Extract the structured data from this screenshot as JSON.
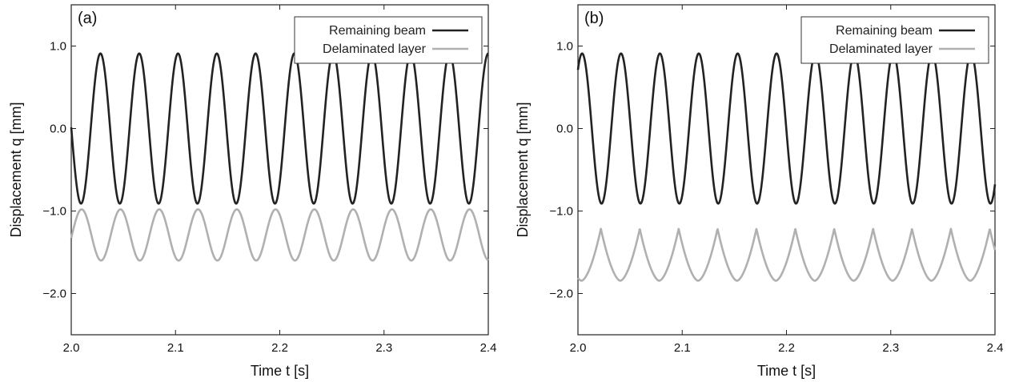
{
  "chart_data": [
    {
      "type": "line",
      "panel_label": "(a)",
      "xlabel": "Time t [s]",
      "ylabel": "Displacement q [mm]",
      "xlim": [
        2.0,
        2.4
      ],
      "ylim": [
        -2.5,
        1.5
      ],
      "xticks": [
        2.0,
        2.1,
        2.2,
        2.3,
        2.4
      ],
      "xtick_labels": [
        "2.0",
        "2.1",
        "2.2",
        "2.3",
        "2.4"
      ],
      "yticks": [
        1.0,
        0.0,
        -1.0,
        -2.0
      ],
      "ytick_labels": [
        "1.0",
        "0.0",
        "−1.0",
        "−2.0"
      ],
      "grid": false,
      "legend_position": "top-right",
      "series": [
        {
          "name": "Remaining beam",
          "color": "#222222",
          "shape": "sine",
          "amplitude": 0.91,
          "offset": 0.0,
          "period": 0.0372,
          "first_peak": 2.028
        },
        {
          "name": "Delaminated layer",
          "color": "#b0b0b0",
          "shape": "sine",
          "amplitude": 0.31,
          "offset": -1.29,
          "period": 0.0372,
          "first_peak": 2.01
        }
      ]
    },
    {
      "type": "line",
      "panel_label": "(b)",
      "xlabel": "Time t [s]",
      "ylabel": "Displacement q [mm]",
      "xlim": [
        2.0,
        2.4
      ],
      "ylim": [
        -2.5,
        1.5
      ],
      "xticks": [
        2.0,
        2.1,
        2.2,
        2.3,
        2.4
      ],
      "xtick_labels": [
        "2.0",
        "2.1",
        "2.2",
        "2.3",
        "2.4"
      ],
      "yticks": [
        1.0,
        0.0,
        -1.0,
        -2.0
      ],
      "ytick_labels": [
        "1.0",
        "0.0",
        "−1.0",
        "−2.0"
      ],
      "grid": false,
      "legend_position": "top-right",
      "series": [
        {
          "name": "Remaining beam",
          "color": "#222222",
          "shape": "sine",
          "amplitude": 0.91,
          "offset": 0.0,
          "period": 0.0373,
          "first_peak": 2.004
        },
        {
          "name": "Delaminated layer",
          "color": "#b0b0b0",
          "shape": "cusp",
          "amplitude": 0.63,
          "offset": -1.53,
          "period": 0.0373,
          "first_peak": 2.022
        }
      ]
    }
  ]
}
